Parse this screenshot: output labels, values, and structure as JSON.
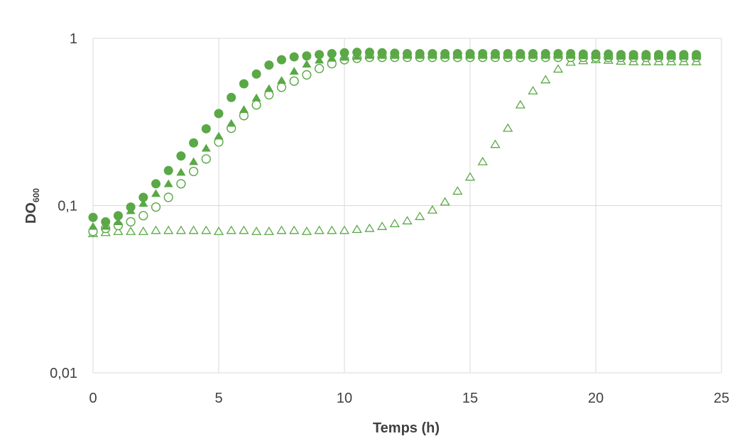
{
  "chart_data": {
    "type": "scatter",
    "title": "",
    "xlabel": "Temps (h)",
    "ylabel_main": "DO",
    "ylabel_sub": "600",
    "xlim": [
      0,
      25
    ],
    "ylim": [
      0.01,
      1
    ],
    "yscale": "log",
    "grid": true,
    "legend": "none",
    "x_ticks": [
      0,
      5,
      10,
      15,
      20,
      25
    ],
    "x_tick_labels": [
      "0",
      "5",
      "10",
      "15",
      "20",
      "25"
    ],
    "y_ticks": [
      0.01,
      0.1,
      1
    ],
    "y_tick_labels": [
      "0,01",
      "0,1",
      "1"
    ],
    "colors": {
      "series": "#5aa846",
      "grid": "#d9d9d9",
      "text": "#404040"
    },
    "series": [
      {
        "marker": "filled-circle",
        "x": [
          0,
          0.5,
          1,
          1.5,
          2,
          2.5,
          3,
          3.5,
          4,
          4.5,
          5,
          5.5,
          6,
          6.5,
          7,
          7.5,
          8,
          8.5,
          9,
          9.5,
          10,
          10.5,
          11,
          11.5,
          12,
          12.5,
          13,
          13.5,
          14,
          14.5,
          15,
          15.5,
          16,
          16.5,
          17,
          17.5,
          18,
          18.5,
          19,
          19.5,
          20,
          20.5,
          21,
          21.5,
          22,
          22.5,
          23,
          23.5,
          24
        ],
        "y": [
          0.085,
          0.08,
          0.087,
          0.098,
          0.112,
          0.135,
          0.162,
          0.198,
          0.237,
          0.288,
          0.355,
          0.443,
          0.535,
          0.612,
          0.692,
          0.745,
          0.775,
          0.785,
          0.8,
          0.81,
          0.82,
          0.825,
          0.825,
          0.82,
          0.815,
          0.81,
          0.81,
          0.81,
          0.81,
          0.81,
          0.81,
          0.81,
          0.81,
          0.81,
          0.81,
          0.81,
          0.81,
          0.81,
          0.81,
          0.805,
          0.805,
          0.805,
          0.8,
          0.8,
          0.8,
          0.8,
          0.8,
          0.8,
          0.8
        ]
      },
      {
        "marker": "filled-triangle",
        "x": [
          0,
          0.5,
          1,
          1.5,
          2,
          2.5,
          3,
          3.5,
          4,
          4.5,
          5,
          5.5,
          6,
          6.5,
          7,
          7.5,
          8,
          8.5,
          9,
          9.5,
          10,
          10.5,
          11,
          11.5,
          12,
          12.5,
          13,
          13.5,
          14,
          14.5,
          15,
          15.5,
          16,
          16.5,
          17,
          17.5,
          18,
          18.5,
          19,
          19.5,
          20,
          20.5,
          21,
          21.5,
          22,
          22.5,
          23,
          23.5,
          24
        ],
        "y": [
          0.075,
          0.075,
          0.08,
          0.093,
          0.103,
          0.118,
          0.135,
          0.158,
          0.183,
          0.22,
          0.26,
          0.31,
          0.375,
          0.44,
          0.5,
          0.56,
          0.635,
          0.7,
          0.74,
          0.76,
          0.77,
          0.78,
          0.79,
          0.79,
          0.79,
          0.79,
          0.79,
          0.79,
          0.79,
          0.79,
          0.79,
          0.79,
          0.79,
          0.79,
          0.79,
          0.79,
          0.79,
          0.79,
          0.79,
          0.785,
          0.785,
          0.78,
          0.78,
          0.78,
          0.78,
          0.78,
          0.78,
          0.78,
          0.78
        ]
      },
      {
        "marker": "open-circle",
        "x": [
          0,
          0.5,
          1,
          1.5,
          2,
          2.5,
          3,
          3.5,
          4,
          4.5,
          5,
          5.5,
          6,
          6.5,
          7,
          7.5,
          8,
          8.5,
          9,
          9.5,
          10,
          10.5,
          11,
          11.5,
          12,
          12.5,
          13,
          13.5,
          14,
          14.5,
          15,
          15.5,
          16,
          16.5,
          17,
          17.5,
          18,
          18.5,
          19,
          19.5,
          20,
          20.5,
          21,
          21.5,
          22,
          22.5,
          23,
          23.5,
          24
        ],
        "y": [
          0.07,
          0.073,
          0.076,
          0.08,
          0.087,
          0.098,
          0.112,
          0.135,
          0.16,
          0.19,
          0.24,
          0.29,
          0.345,
          0.4,
          0.46,
          0.51,
          0.555,
          0.605,
          0.66,
          0.705,
          0.745,
          0.76,
          0.77,
          0.77,
          0.77,
          0.77,
          0.77,
          0.77,
          0.77,
          0.77,
          0.77,
          0.77,
          0.77,
          0.77,
          0.77,
          0.77,
          0.77,
          0.77,
          0.77,
          0.77,
          0.77,
          0.77,
          0.77,
          0.77,
          0.77,
          0.77,
          0.77,
          0.77,
          0.77
        ]
      },
      {
        "marker": "open-triangle",
        "x": [
          0,
          0.5,
          1,
          1.5,
          2,
          2.5,
          3,
          3.5,
          4,
          4.5,
          5,
          5.5,
          6,
          6.5,
          7,
          7.5,
          8,
          8.5,
          9,
          9.5,
          10,
          10.5,
          11,
          11.5,
          12,
          12.5,
          13,
          13.5,
          14,
          14.5,
          15,
          15.5,
          16,
          16.5,
          17,
          17.5,
          18,
          18.5,
          19,
          19.5,
          20,
          20.5,
          21,
          21.5,
          22,
          22.5,
          23,
          23.5,
          24
        ],
        "y": [
          0.068,
          0.069,
          0.07,
          0.07,
          0.07,
          0.071,
          0.071,
          0.071,
          0.071,
          0.071,
          0.07,
          0.071,
          0.071,
          0.07,
          0.07,
          0.071,
          0.071,
          0.07,
          0.071,
          0.071,
          0.071,
          0.072,
          0.073,
          0.075,
          0.078,
          0.081,
          0.086,
          0.094,
          0.105,
          0.122,
          0.148,
          0.183,
          0.232,
          0.29,
          0.4,
          0.485,
          0.565,
          0.655,
          0.72,
          0.735,
          0.745,
          0.74,
          0.73,
          0.725,
          0.725,
          0.725,
          0.725,
          0.725,
          0.725
        ]
      }
    ]
  }
}
